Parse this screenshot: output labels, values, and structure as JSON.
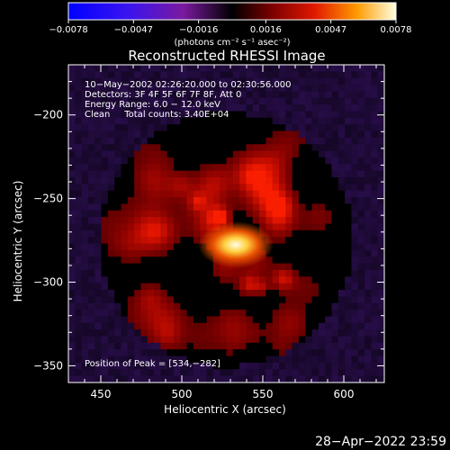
{
  "chart_data": {
    "type": "heatmap",
    "title": "Reconstructed RHESSI Image",
    "xlabel": "Heliocentric X (arcsec)",
    "ylabel": "Heliocentric Y (arcsec)",
    "xlim": [
      430,
      625
    ],
    "ylim": [
      -360,
      -170
    ],
    "xticks": [
      450,
      500,
      550,
      600
    ],
    "yticks": [
      -200,
      -250,
      -300,
      -350
    ],
    "colorbar": {
      "min": -0.0078,
      "max": 0.0078,
      "tick_values": [
        -0.0078,
        -0.0047,
        -0.0016,
        0.0016,
        0.0047,
        0.0078
      ],
      "tick_labels": [
        "−0.0078",
        "−0.0047",
        "−0.0016",
        "0.0016",
        "0.0047",
        "0.0078"
      ],
      "units_label": "(photons cm⁻² s⁻¹ asec⁻²)"
    },
    "info_lines": [
      "10−May−2002 02:26:20.000 to 02:30:56.000",
      "Detectors: 3F 4F 5F 6F 7F 8F, Att 0",
      "Energy Range: 6.0 − 12.0 keV",
      "Clean     Total counts: 3.40E+04"
    ],
    "peak_label": "Position of Peak = [534,−282]",
    "peak": {
      "x": 534,
      "y": -282
    }
  },
  "footer_timestamp": "28−Apr−2022 23:59"
}
